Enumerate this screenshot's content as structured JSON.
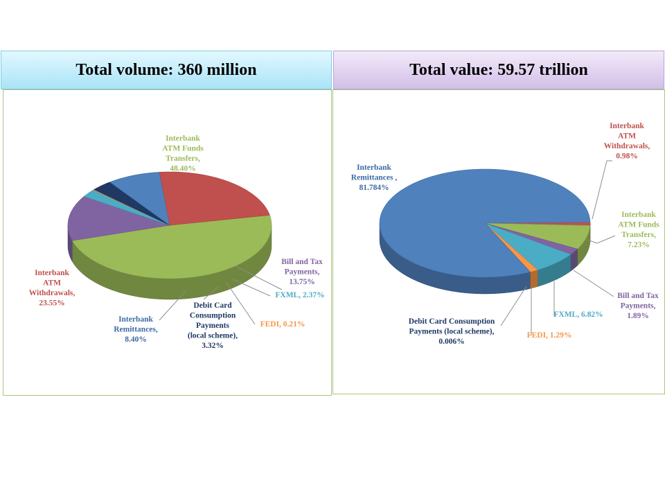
{
  "left": {
    "title": "Total volume: 360 million",
    "chart_data": {
      "type": "pie",
      "title": "Total volume: 360 million",
      "slices": [
        {
          "name": "Interbank ATM Funds Transfers",
          "value": 48.4,
          "color": "#9bbb59",
          "lines": [
            "Interbank",
            "ATM  Funds",
            "Transfers,",
            "48.40%"
          ]
        },
        {
          "name": "Bill and Tax Payments",
          "value": 13.75,
          "color": "#8064a2",
          "lines": [
            "Bill and  Tax",
            "Payments,",
            "13.75%"
          ]
        },
        {
          "name": "FXML",
          "value": 2.37,
          "color": "#4bacc6",
          "lines": [
            "FXML,   2.37%"
          ]
        },
        {
          "name": "FEDI",
          "value": 0.21,
          "color": "#f79646",
          "lines": [
            "FEDI,   0.21%"
          ]
        },
        {
          "name": "Debit Card Consumption Payments (local scheme)",
          "value": 3.32,
          "color": "#1f3864",
          "lines": [
            "Debit Card",
            "Consumption",
            "Payments",
            "(local scheme),",
            "3.32%"
          ]
        },
        {
          "name": "Interbank Remittances",
          "value": 8.4,
          "color": "#4f81bd",
          "lines": [
            "Interbank",
            "Remittances,",
            "8.40%"
          ]
        },
        {
          "name": "Interbank ATM Withdrawals",
          "value": 23.55,
          "color": "#c0504d",
          "lines": [
            "Interbank",
            "ATM",
            "Withdrawals,",
            "23.55%"
          ]
        }
      ]
    }
  },
  "right": {
    "title": "Total value: 59.57 trillion",
    "chart_data": {
      "type": "pie",
      "title": "Total value: 59.57 trillion",
      "slices": [
        {
          "name": "Interbank ATM Withdrawals",
          "value": 0.98,
          "color": "#c0504d",
          "lines": [
            "Interbank",
            "ATM",
            "Withdrawals,",
            "0.98%"
          ]
        },
        {
          "name": "Interbank ATM Funds Transfers",
          "value": 7.23,
          "color": "#9bbb59",
          "lines": [
            "Interbank",
            "ATM  Funds",
            "Transfers,",
            "7.23%"
          ]
        },
        {
          "name": "Bill and Tax Payments",
          "value": 1.89,
          "color": "#8064a2",
          "lines": [
            "Bill and  Tax",
            "Payments,",
            "1.89%"
          ]
        },
        {
          "name": "FXML",
          "value": 6.82,
          "color": "#4bacc6",
          "lines": [
            "FXML,   6.82%"
          ]
        },
        {
          "name": "FEDI",
          "value": 1.29,
          "color": "#f79646",
          "lines": [
            "FEDI,   1.29%"
          ]
        },
        {
          "name": "Debit Card Consumption Payments (local scheme)",
          "value": 0.006,
          "color": "#1f3864",
          "lines": [
            "Debit Card  Consumption",
            "Payments  (local scheme),",
            "0.006%"
          ]
        },
        {
          "name": "Interbank Remittances",
          "value": 81.784,
          "color": "#4f81bd",
          "lines": [
            "Interbank",
            "Remittances  ,",
            "81.784%"
          ]
        }
      ]
    }
  }
}
